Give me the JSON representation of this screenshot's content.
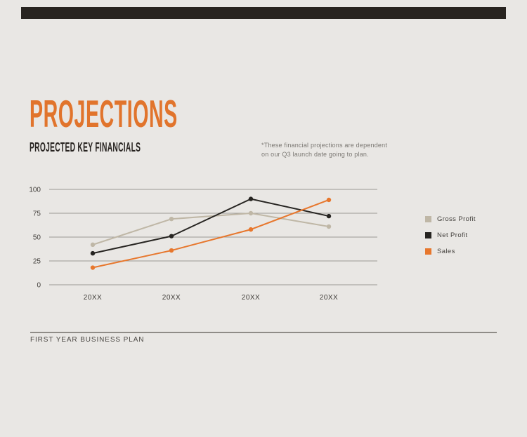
{
  "page": {
    "background": "#e9e7e4"
  },
  "header": {
    "title": "PROJECTIONS",
    "subtitle": "PROJECTED KEY FINANCIALS",
    "note_line1": "*These financial projections are dependent",
    "note_line2": "on our Q3 launch date going to plan."
  },
  "colors": {
    "accent_orange": "#e1742c",
    "dark": "#282420",
    "grid_line": "#9c9995",
    "tick_text": "#413e3a",
    "note_text": "#7b7873",
    "footer_text": "#4c4945",
    "footer_rule": "#8f8c87"
  },
  "chart_data": {
    "type": "line",
    "title": "",
    "xlabel": "",
    "ylabel": "",
    "categories": [
      "20XX",
      "20XX",
      "20XX",
      "20XX"
    ],
    "series": [
      {
        "name": "Gross Profit",
        "color": "#bfb7a6",
        "values": [
          42,
          69,
          75,
          61
        ]
      },
      {
        "name": "Net Profit",
        "color": "#262421",
        "values": [
          33,
          51,
          90,
          72
        ]
      },
      {
        "name": "Sales",
        "color": "#e7772d",
        "values": [
          18,
          36,
          58,
          89
        ]
      }
    ],
    "y_ticks": [
      0,
      25,
      50,
      75,
      100
    ],
    "ylim": [
      0,
      100
    ],
    "grid": "horizontal-only",
    "legend_position": "right"
  },
  "footer": {
    "label": "FIRST YEAR BUSINESS PLAN"
  }
}
